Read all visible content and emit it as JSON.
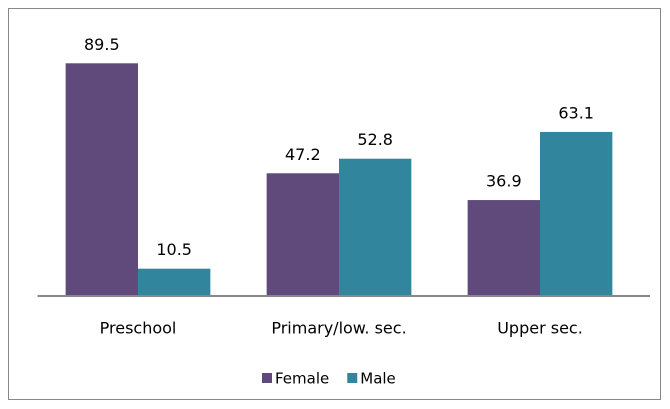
{
  "chart_data": {
    "type": "bar",
    "categories": [
      "Preschool",
      "Primary/low. sec.",
      "Upper sec."
    ],
    "series": [
      {
        "name": "Female",
        "color": "#604a7b",
        "values": [
          89.5,
          47.2,
          36.9
        ]
      },
      {
        "name": "Male",
        "color": "#31859c",
        "values": [
          10.5,
          52.8,
          63.1
        ]
      }
    ],
    "ylim": [
      0,
      100
    ],
    "legend": "bottom"
  }
}
